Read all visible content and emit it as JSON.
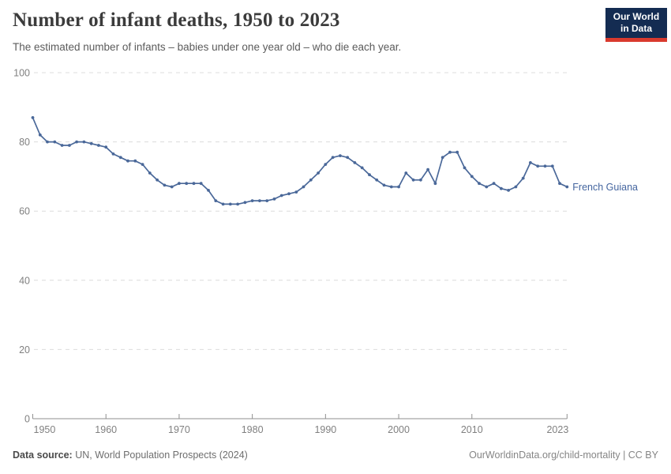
{
  "header": {
    "title": "Number of infant deaths, 1950 to 2023",
    "subtitle": "The estimated number of infants – babies under one year old – who die each year.",
    "logo": {
      "line1": "Our World",
      "line2": "in Data"
    }
  },
  "chart_data": {
    "type": "line",
    "title": "Number of infant deaths, 1950 to 2023",
    "series_label": "French Guiana",
    "years": [
      1950,
      1951,
      1952,
      1953,
      1954,
      1955,
      1956,
      1957,
      1958,
      1959,
      1960,
      1961,
      1962,
      1963,
      1964,
      1965,
      1966,
      1967,
      1968,
      1969,
      1970,
      1971,
      1972,
      1973,
      1974,
      1975,
      1976,
      1977,
      1978,
      1979,
      1980,
      1981,
      1982,
      1983,
      1984,
      1985,
      1986,
      1987,
      1988,
      1989,
      1990,
      1991,
      1992,
      1993,
      1994,
      1995,
      1996,
      1997,
      1998,
      1999,
      2000,
      2001,
      2002,
      2003,
      2004,
      2005,
      2006,
      2007,
      2008,
      2009,
      2010,
      2011,
      2012,
      2013,
      2014,
      2015,
      2016,
      2017,
      2018,
      2019,
      2020,
      2021,
      2022,
      2023
    ],
    "values": [
      87,
      82,
      80,
      80,
      79,
      79,
      80,
      80,
      79.5,
      79,
      78.5,
      76.5,
      75.5,
      74.5,
      74.5,
      73.5,
      71,
      69,
      67.5,
      67,
      68,
      68,
      68,
      68,
      66,
      63,
      62,
      62,
      62,
      62.5,
      63,
      63,
      63,
      63.5,
      64.5,
      65,
      65.5,
      67,
      69,
      71,
      73.5,
      75.5,
      76,
      75.5,
      74,
      72.5,
      70.5,
      69,
      67.5,
      67,
      67,
      71,
      69,
      69,
      72,
      68,
      75.5,
      77,
      77,
      72.5,
      70,
      68,
      67,
      68,
      66.5,
      66,
      67,
      69.5,
      74,
      73,
      73,
      73,
      68,
      67
    ],
    "x_ticks": [
      1950,
      1960,
      1970,
      1980,
      1990,
      2000,
      2010,
      2023
    ],
    "y_ticks": [
      0,
      20,
      40,
      60,
      80,
      100
    ],
    "xlim": [
      1950,
      2023
    ],
    "ylim": [
      0,
      100
    ],
    "grid": "horizontal-dashed",
    "legend_position": "end-of-line-label"
  },
  "colors": {
    "line": "#4a6899",
    "entity_label": "#44659f",
    "grid": "#dcdcdc",
    "axis": "#8f8f8f",
    "tick_label": "#808080",
    "logo_bg": "#142c52",
    "logo_accent": "#d93a2e"
  },
  "footer": {
    "source_label": "Data source:",
    "source_text": " UN, World Population Prospects (2024)",
    "credit": "OurWorldinData.org/child-mortality | CC BY"
  }
}
